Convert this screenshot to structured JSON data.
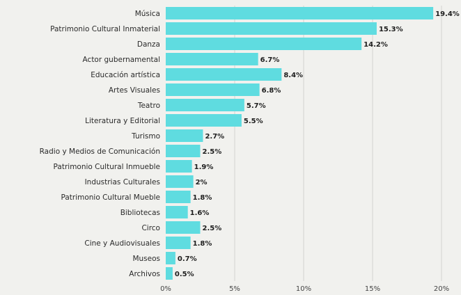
{
  "chart_data": {
    "type": "bar",
    "orientation": "horizontal",
    "title": "",
    "xlabel": "",
    "ylabel": "",
    "categories": [
      "Música",
      "Patrimonio Cultural Inmaterial",
      "Danza",
      "Actor gubernamental",
      "Educación artística",
      "Artes Visuales",
      "Teatro",
      "Literatura y Editorial",
      "Turismo",
      "Radio y Medios de Comunicación",
      "Patrimonio Cultural Inmueble",
      "Industrias Culturales",
      "Patrimonio Cultural Mueble",
      "Bibliotecas",
      "Circo",
      "Cine y Audiovisuales",
      "Museos",
      "Archivos"
    ],
    "values": [
      19.4,
      15.3,
      14.2,
      6.7,
      8.4,
      6.8,
      5.7,
      5.5,
      2.7,
      2.5,
      1.9,
      2,
      1.8,
      1.6,
      2.5,
      1.8,
      0.7,
      0.5
    ],
    "value_labels": [
      "19.4%",
      "15.3%",
      "14.2%",
      "6.7%",
      "8.4%",
      "6.8%",
      "5.7%",
      "5.5%",
      "2.7%",
      "2.5%",
      "1.9%",
      "2%",
      "1.8%",
      "1.6%",
      "2.5%",
      "1.8%",
      "0.7%",
      "0.5%"
    ],
    "xlim": [
      0,
      20
    ],
    "xticks": [
      0,
      5,
      10,
      15,
      20
    ],
    "xtick_labels": [
      "0%",
      "5%",
      "10%",
      "15%",
      "20%"
    ],
    "grid": "vertical",
    "legend": "none",
    "colors": {
      "bar": "#5fdce0",
      "grid": "#d4d4d0",
      "background": "#f1f1ee"
    }
  }
}
